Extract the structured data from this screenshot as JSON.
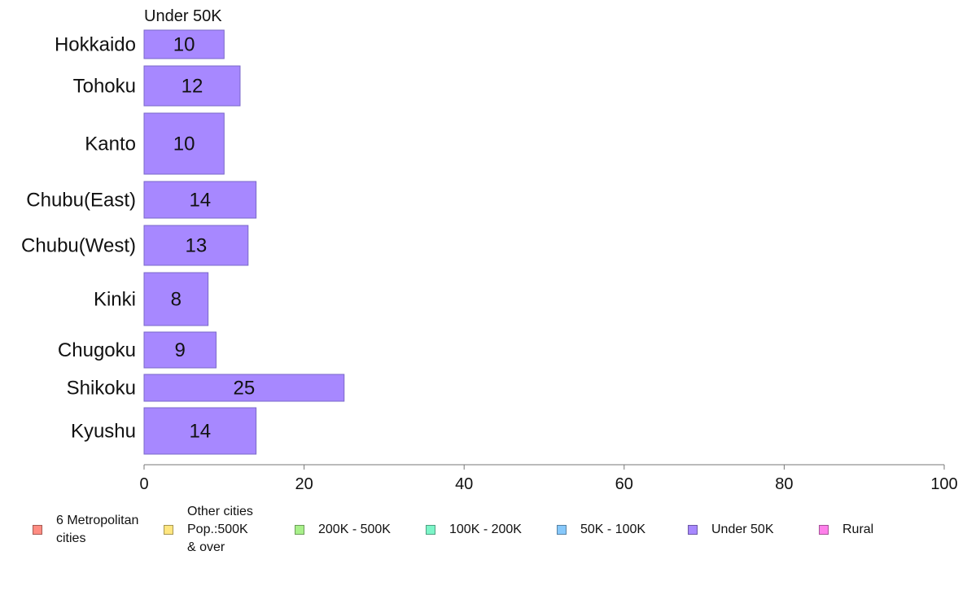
{
  "chart_data": {
    "type": "bar",
    "orientation": "horizontal",
    "title": "Under 50K",
    "categories": [
      "Hokkaido",
      "Tohoku",
      "Kanto",
      "Chubu(East)",
      "Chubu(West)",
      "Kinki",
      "Chugoku",
      "Shikoku",
      "Kyushu"
    ],
    "series": [
      {
        "name": "Under 50K",
        "values": [
          10,
          12,
          10,
          14,
          13,
          8,
          9,
          25,
          14
        ]
      }
    ],
    "data_labels": [
      "10",
      "12",
      "10",
      "14",
      "13",
      "8",
      "9",
      "25",
      "14"
    ],
    "xlim": [
      0,
      100
    ],
    "xticks": [
      0,
      20,
      40,
      60,
      80,
      100
    ],
    "xtick_labels": [
      "0",
      "20",
      "40",
      "60",
      "80",
      "100"
    ],
    "grid": false,
    "bar_color": "#a788ff",
    "bar_edge_color": "#7a68c8",
    "legend_position": "bottom",
    "legend": [
      {
        "label": "6 Metropolitan\n cities",
        "color": "#ff8c82"
      },
      {
        "label": "Other cities\nPop.:500K\n & over",
        "color": "#ffe680"
      },
      {
        "label": "200K - 500K",
        "color": "#a8f08a"
      },
      {
        "label": "100K - 200K",
        "color": "#7cf5c8"
      },
      {
        "label": "50K - 100K",
        "color": "#86c8fb"
      },
      {
        "label": "Under 50K",
        "color": "#a788ff"
      },
      {
        "label": "Rural",
        "color": "#ff80ea"
      }
    ]
  }
}
